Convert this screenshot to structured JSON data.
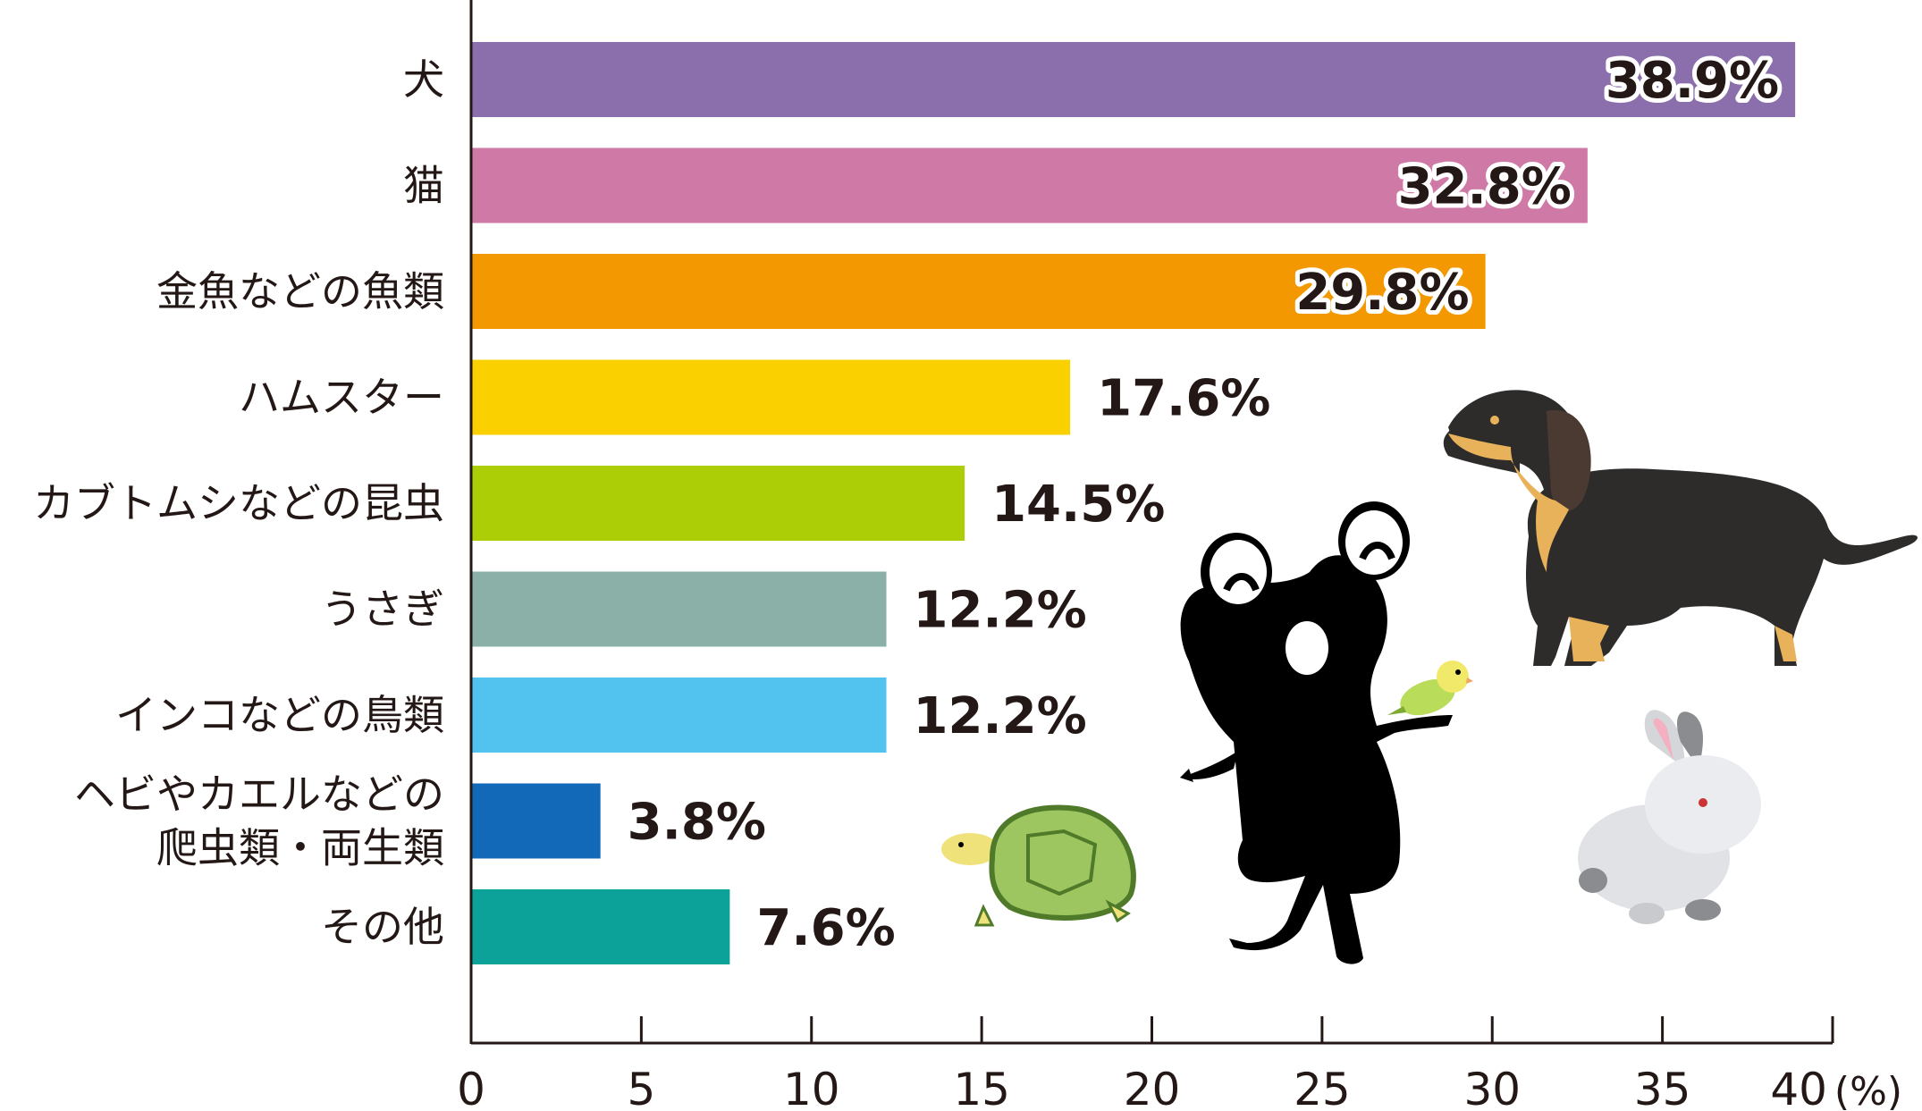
{
  "chart_data": {
    "type": "bar",
    "orientation": "horizontal",
    "categories": [
      [
        "犬"
      ],
      [
        "猫"
      ],
      [
        "金魚などの魚類"
      ],
      [
        "ハムスター"
      ],
      [
        "カブトムシなどの昆虫"
      ],
      [
        "うさぎ"
      ],
      [
        "インコなどの鳥類"
      ],
      [
        "ヘビやカエルなどの",
        "爬虫類・両生類"
      ],
      [
        "その他"
      ]
    ],
    "values": [
      38.9,
      32.8,
      29.8,
      17.6,
      14.5,
      12.2,
      12.2,
      3.8,
      7.6
    ],
    "value_labels": [
      "38.9%",
      "32.8%",
      "29.8%",
      "17.6%",
      "14.5%",
      "12.2%",
      "12.2%",
      "3.8%",
      "7.6%"
    ],
    "colors": [
      "#8b6fad",
      "#cf7aa6",
      "#f39800",
      "#fad000",
      "#acce07",
      "#8bb0a8",
      "#52c2ef",
      "#1269b8",
      "#0ca29a"
    ],
    "xlim": [
      0,
      40
    ],
    "xticks": [
      0,
      5,
      10,
      15,
      20,
      25,
      30,
      35,
      40
    ],
    "xunit": "(%)",
    "grid": false,
    "legend": "none"
  },
  "illustrations": [
    {
      "name": "dachshund-dog"
    },
    {
      "name": "black-frog-character"
    },
    {
      "name": "budgerigar-bird"
    },
    {
      "name": "turtle"
    },
    {
      "name": "white-rabbit"
    }
  ]
}
